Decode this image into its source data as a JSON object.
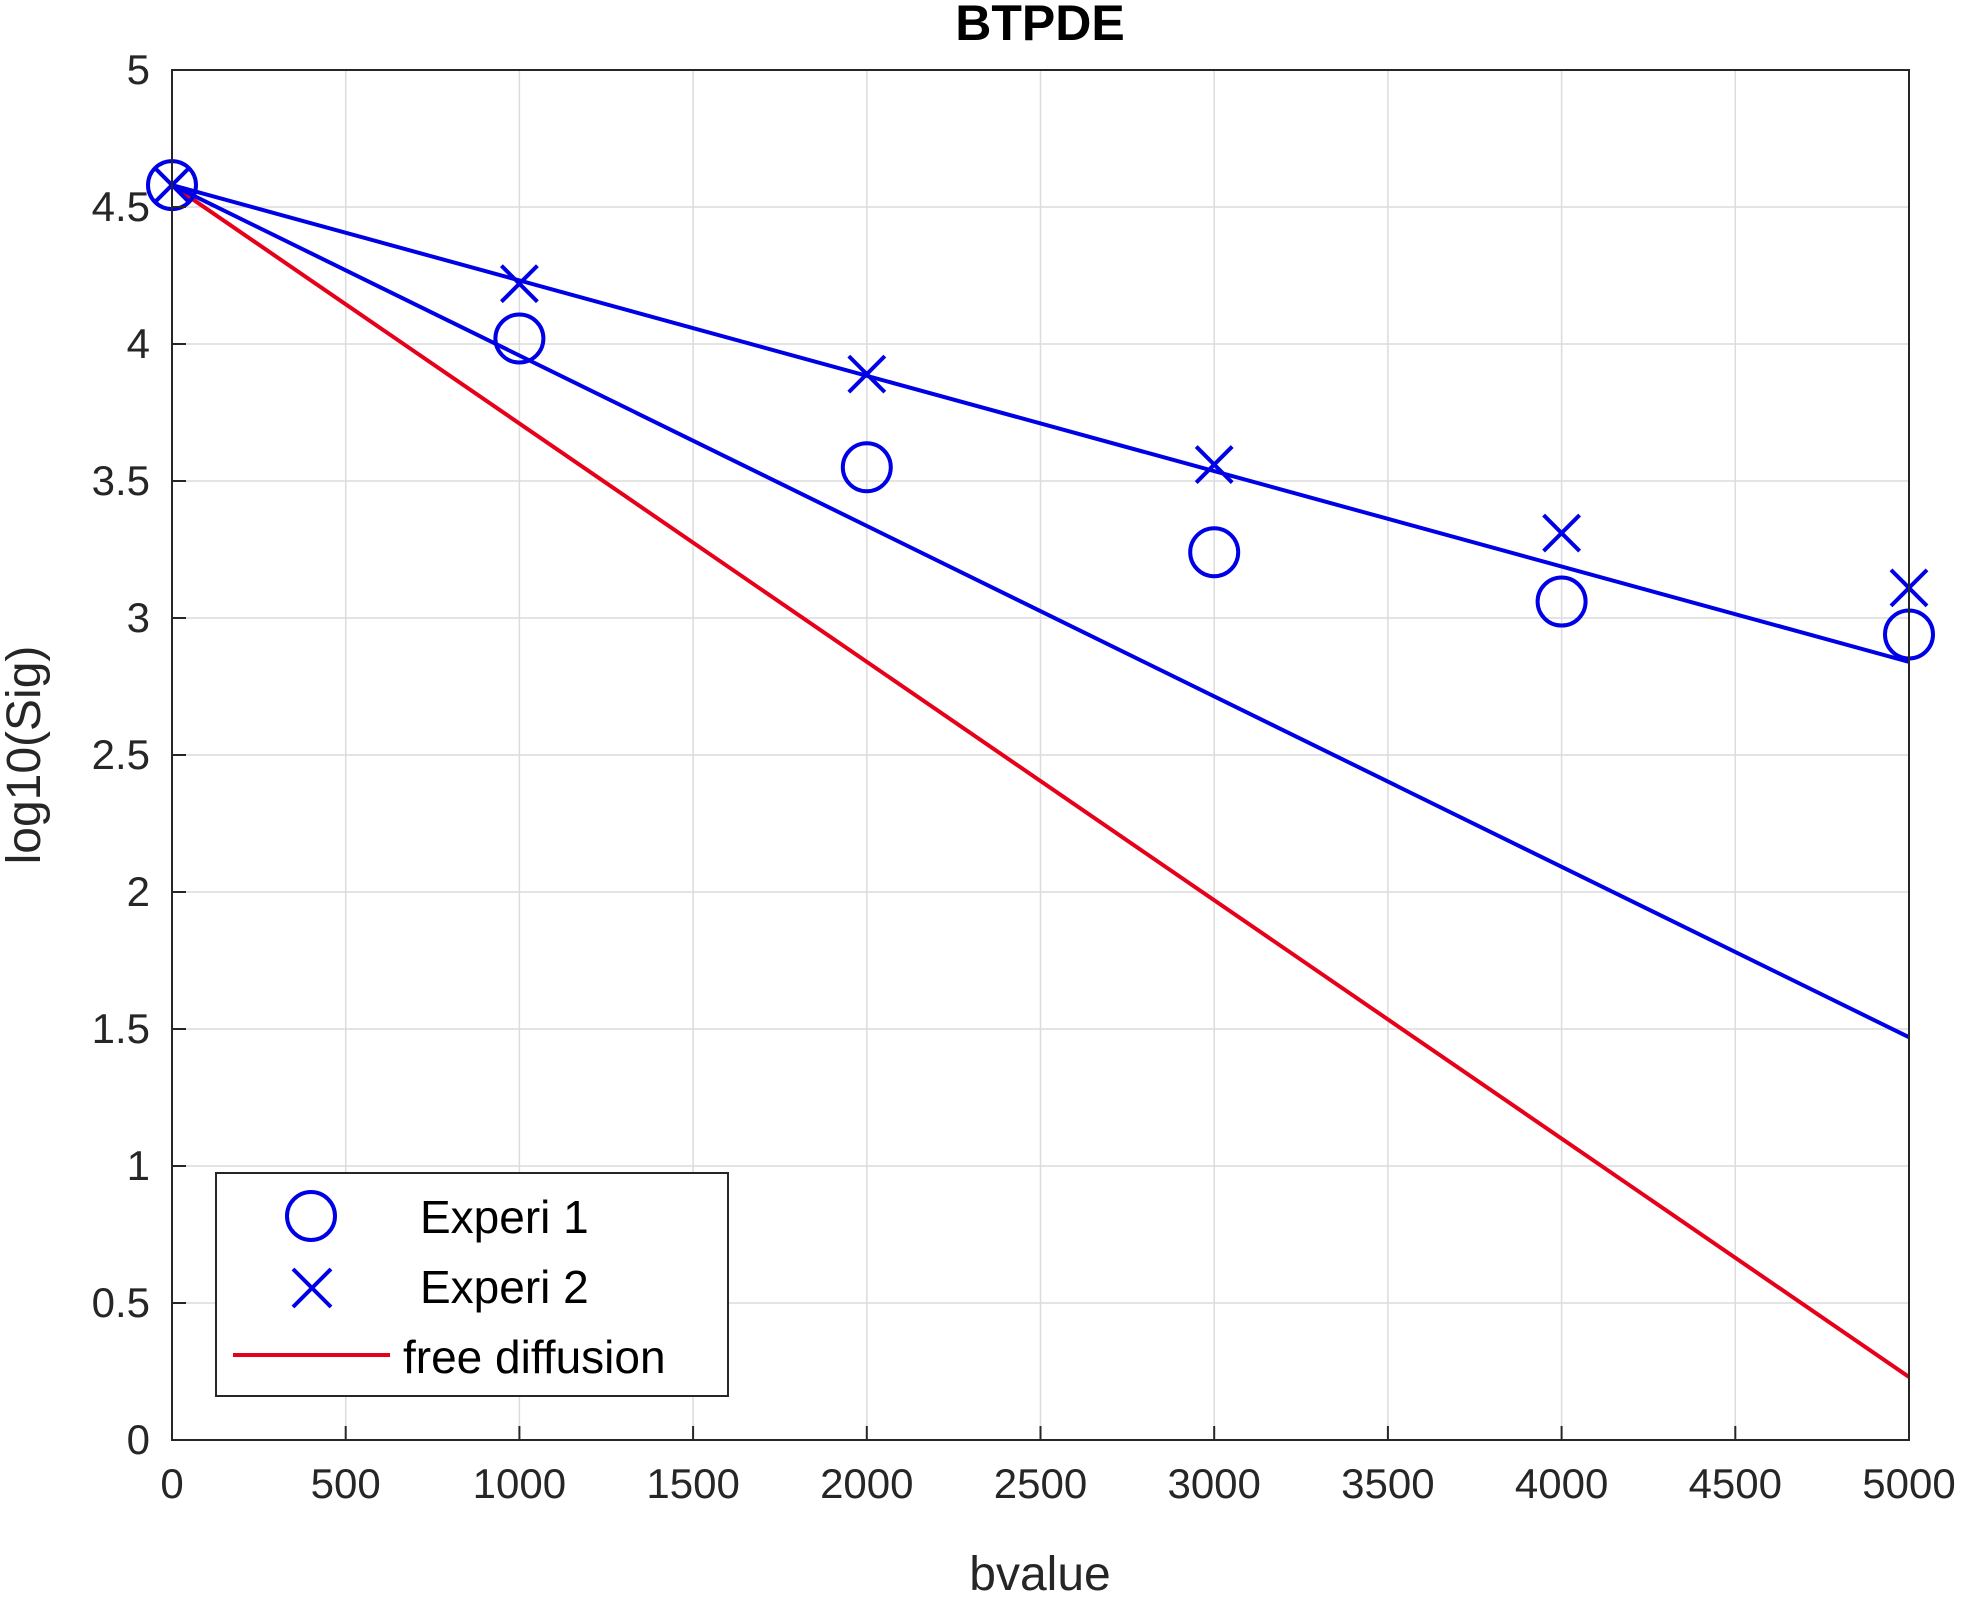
{
  "chart_data": {
    "type": "line",
    "title": "BTPDE",
    "xlabel": "bvalue",
    "ylabel": "log10(Sig)",
    "xlim": [
      0,
      5000
    ],
    "ylim": [
      0,
      5
    ],
    "xticks": [
      "0",
      "500",
      "1000",
      "1500",
      "2000",
      "2500",
      "3000",
      "3500",
      "4000",
      "4500",
      "5000"
    ],
    "yticks": [
      "0",
      "0.5",
      "1",
      "1.5",
      "2",
      "2.5",
      "3",
      "3.5",
      "4",
      "4.5",
      "5"
    ],
    "grid": true,
    "legend_position": "bottom-left",
    "series": [
      {
        "name": "Experi 1",
        "kind": "marker",
        "marker": "circle",
        "color": "#0000e6",
        "x": [
          0,
          1000,
          2000,
          3000,
          4000,
          5000
        ],
        "y": [
          4.58,
          4.02,
          3.55,
          3.24,
          3.06,
          2.94
        ]
      },
      {
        "name": "Experi 2",
        "kind": "marker",
        "marker": "x",
        "color": "#0000e6",
        "x": [
          0,
          1000,
          2000,
          3000,
          4000,
          5000
        ],
        "y": [
          4.58,
          4.22,
          3.89,
          3.56,
          3.31,
          3.11
        ]
      },
      {
        "name": "free diffusion",
        "kind": "line",
        "color": "#e6001a",
        "x": [
          0,
          5000
        ],
        "y": [
          4.58,
          0.23
        ]
      },
      {
        "kind": "line",
        "color": "#0000e6",
        "x": [
          0,
          5000
        ],
        "y": [
          4.58,
          1.47
        ]
      },
      {
        "kind": "line",
        "color": "#0000e6",
        "x": [
          0,
          5000
        ],
        "y": [
          4.58,
          2.84
        ]
      }
    ]
  }
}
